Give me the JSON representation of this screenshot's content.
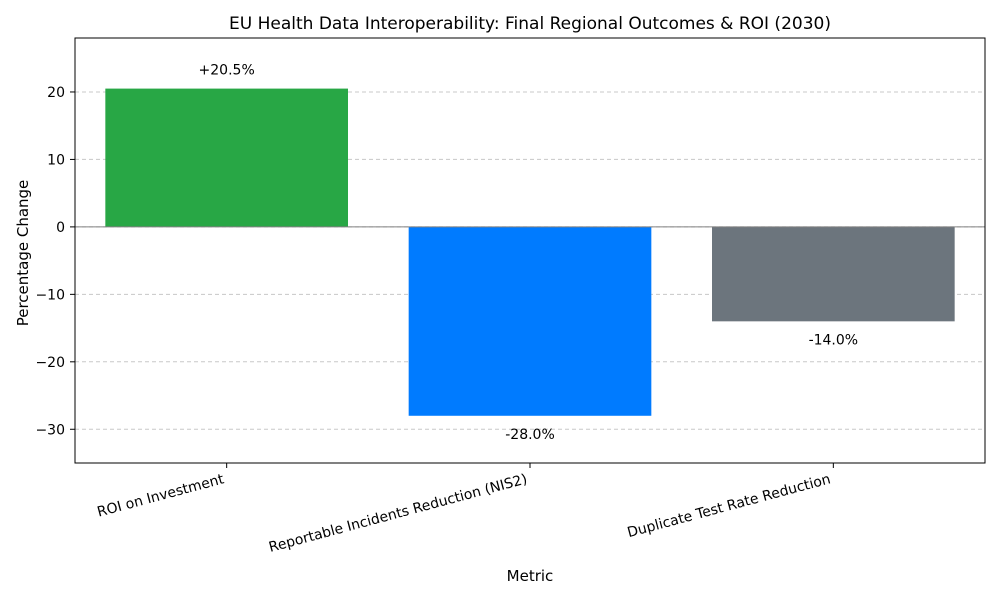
{
  "chart_data": {
    "type": "bar",
    "title": "EU Health Data Interoperability: Final Regional Outcomes & ROI (2030)",
    "xlabel": "Metric",
    "ylabel": "Percentage Change",
    "ylim": [
      -35,
      28
    ],
    "yticks": [
      20,
      10,
      0,
      -10,
      -20,
      -30
    ],
    "ytick_labels": [
      "20",
      "10",
      "0",
      "−10",
      "−20",
      "−30"
    ],
    "grid": true,
    "categories": [
      "ROI on Investment",
      "Reportable Incidents Reduction (NIS2)",
      "Duplicate Test Rate Reduction"
    ],
    "values": [
      20.5,
      -28.0,
      -14.0
    ],
    "data_labels": [
      "+20.5%",
      "-28.0%",
      "-14.0%"
    ],
    "colors": [
      "#28a745",
      "#007bff",
      "#6c757d"
    ]
  }
}
